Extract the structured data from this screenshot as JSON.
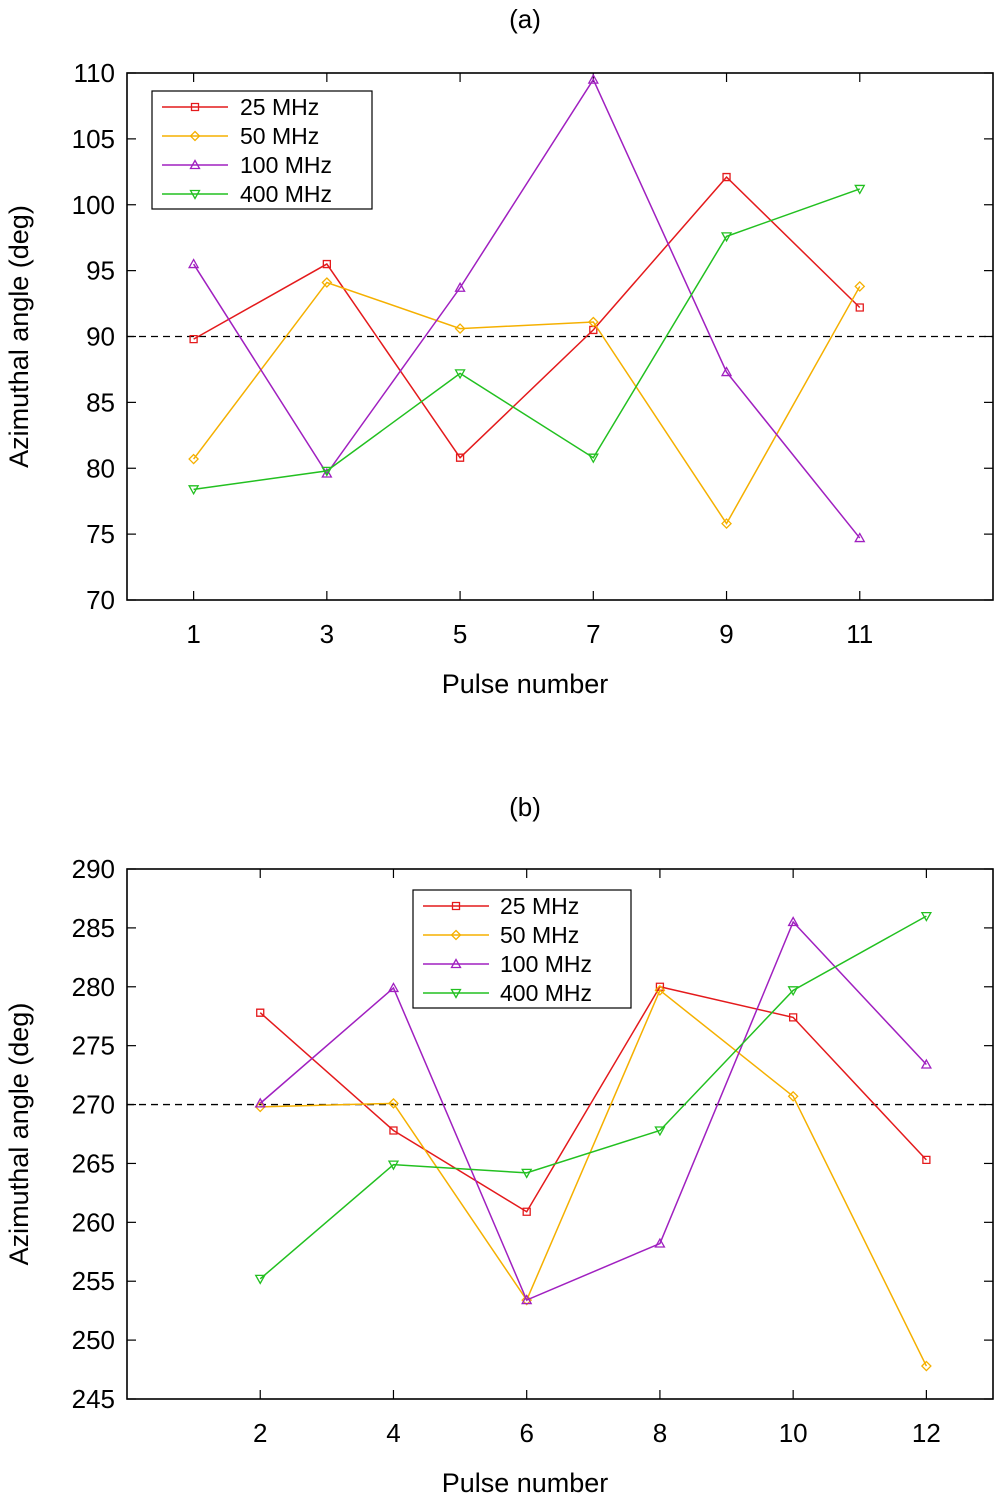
{
  "chart_data": [
    {
      "type": "line",
      "title": "(a)",
      "xlabel": "Pulse number",
      "ylabel": "Azimuthal angle (deg)",
      "xlim": [
        0,
        13
      ],
      "ylim": [
        70,
        110
      ],
      "xticks": [
        1,
        3,
        5,
        7,
        9,
        11
      ],
      "yticks": [
        70,
        75,
        80,
        85,
        90,
        95,
        100,
        105,
        110
      ],
      "reference_line": {
        "y": 90,
        "style": "dashed",
        "color": "#000000"
      },
      "legend_position": "top-left",
      "x": [
        1,
        3,
        5,
        7,
        9,
        11
      ],
      "series": [
        {
          "name": "25 MHz",
          "color": "#e41a1c",
          "marker": "square",
          "values": [
            89.8,
            95.5,
            80.8,
            90.5,
            102.1,
            92.2
          ]
        },
        {
          "name": "50 MHz",
          "color": "#f5b000",
          "marker": "diamond",
          "values": [
            80.7,
            94.1,
            90.6,
            91.1,
            75.8,
            93.8
          ]
        },
        {
          "name": "100 MHz",
          "color": "#a020c0",
          "marker": "triangle-up",
          "values": [
            95.5,
            79.6,
            93.7,
            109.5,
            87.3,
            74.7
          ]
        },
        {
          "name": "400 MHz",
          "color": "#22c020",
          "marker": "triangle-down",
          "values": [
            78.4,
            79.8,
            87.2,
            80.8,
            97.6,
            101.2
          ]
        }
      ]
    },
    {
      "type": "line",
      "title": "(b)",
      "xlabel": "Pulse number",
      "ylabel": "Azimuthal angle (deg)",
      "xlim": [
        0,
        13
      ],
      "ylim": [
        245,
        290
      ],
      "xticks": [
        2,
        4,
        6,
        8,
        10,
        12
      ],
      "yticks": [
        245,
        250,
        255,
        260,
        265,
        270,
        275,
        280,
        285,
        290
      ],
      "reference_line": {
        "y": 270,
        "style": "dashed",
        "color": "#000000"
      },
      "legend_position": "top-center",
      "x": [
        2,
        4,
        6,
        8,
        10,
        12
      ],
      "series": [
        {
          "name": "25 MHz",
          "color": "#e41a1c",
          "marker": "square",
          "values": [
            277.8,
            267.8,
            260.9,
            280.0,
            277.4,
            265.3
          ]
        },
        {
          "name": "50 MHz",
          "color": "#f5b000",
          "marker": "diamond",
          "values": [
            269.8,
            270.1,
            253.4,
            279.7,
            270.7,
            247.8
          ]
        },
        {
          "name": "100 MHz",
          "color": "#a020c0",
          "marker": "triangle-up",
          "values": [
            270.1,
            279.9,
            253.4,
            258.2,
            285.5,
            273.4
          ]
        },
        {
          "name": "400 MHz",
          "color": "#22c020",
          "marker": "triangle-down",
          "values": [
            255.2,
            264.9,
            264.2,
            267.8,
            279.7,
            286.0
          ]
        }
      ]
    }
  ]
}
